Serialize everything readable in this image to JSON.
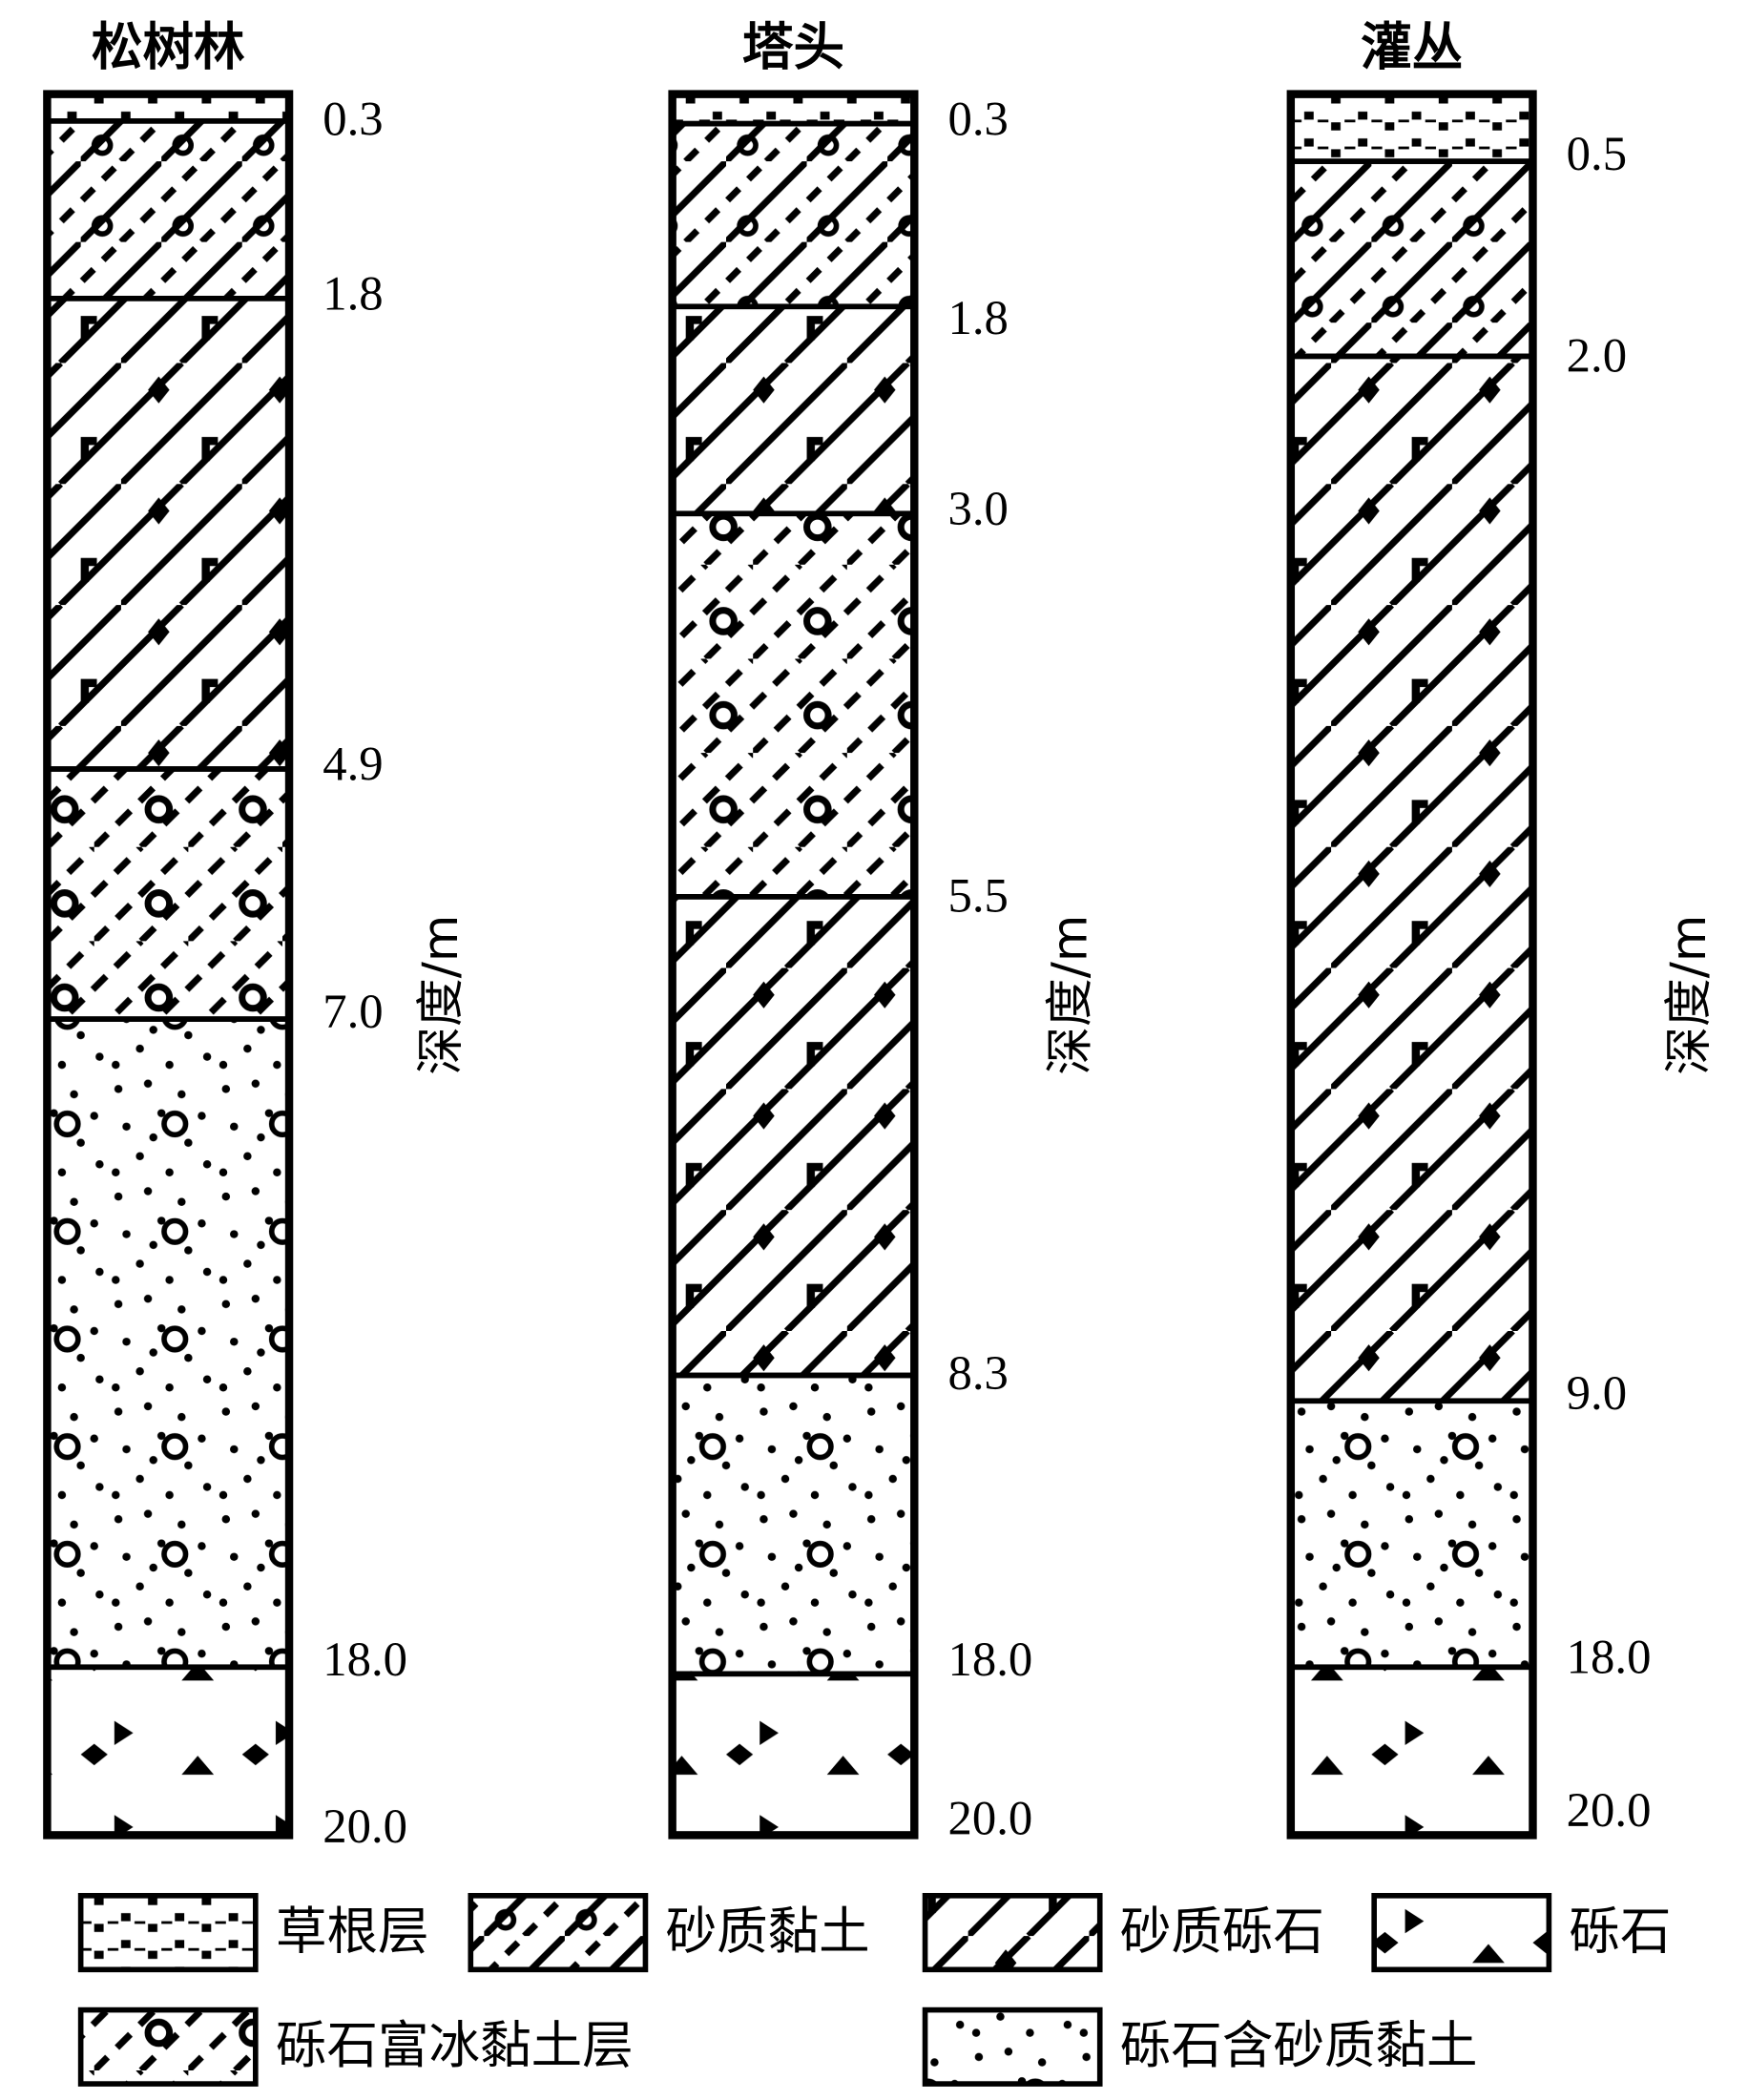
{
  "columns": [
    {
      "title": "松树林",
      "depths": [
        "0.3",
        "1.8",
        "4.9",
        "7.0",
        "18.0",
        "20.0"
      ]
    },
    {
      "title": "塔头",
      "depths": [
        "0.3",
        "1.8",
        "3.0",
        "5.5",
        "8.3",
        "18.0",
        "20.0"
      ]
    },
    {
      "title": "灌丛",
      "depths": [
        "0.5",
        "2.0",
        "9.0",
        "18.0",
        "20.0"
      ]
    }
  ],
  "axis_label": "深度/m",
  "legend": [
    "草根层",
    "砂质黏土",
    "砂质砾石",
    "砾石",
    "砾石富冰黏土层",
    "砾石含砂质黏土"
  ]
}
